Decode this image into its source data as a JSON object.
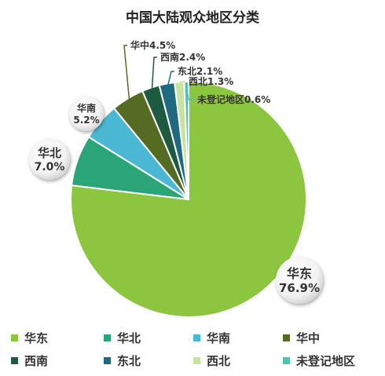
{
  "colors": {
    "east": "#8cc63f",
    "north": "#2aa577",
    "south": "#4bb8d3",
    "central": "#566b22",
    "southwest": "#1e5a3f",
    "northeast": "#1f6a80",
    "northwest": "#c9e29d",
    "unregistered": "#4cc3b5"
  },
  "chart_data": {
    "type": "pie",
    "title": "中国大陆观众地区分类",
    "slices": [
      {
        "name": "华东",
        "value": 76.9,
        "label": "76.9%",
        "color": "#8cc63f"
      },
      {
        "name": "华北",
        "value": 7.0,
        "label": "7.0%",
        "color": "#2aa577"
      },
      {
        "name": "华南",
        "value": 5.2,
        "label": "5.2%",
        "color": "#4bb8d3"
      },
      {
        "name": "华中",
        "value": 4.5,
        "label": "华中4.5%",
        "color": "#566b22"
      },
      {
        "name": "西南",
        "value": 2.4,
        "label": "西南2.4%",
        "color": "#1e5a3f"
      },
      {
        "name": "东北",
        "value": 2.1,
        "label": "东北2.1%",
        "color": "#1f6a80"
      },
      {
        "name": "西北",
        "value": 1.3,
        "label": "西北1.3%",
        "color": "#c9e29d"
      },
      {
        "name": "未登记地区",
        "value": 0.6,
        "label": "未登记地区0.6%",
        "color": "#4cc3b5"
      }
    ],
    "legend": [
      "华东",
      "华北",
      "华南",
      "华中",
      "西南",
      "东北",
      "西北",
      "未登记地区"
    ],
    "legend_position": "bottom"
  }
}
